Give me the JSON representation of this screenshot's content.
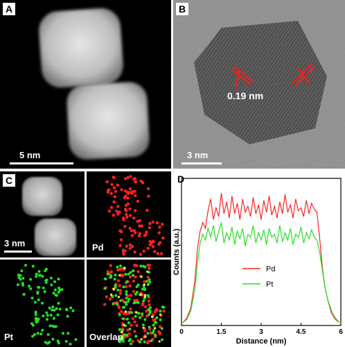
{
  "figure": {
    "panels": {
      "a": {
        "tag": "A",
        "scale_label": "5 nm"
      },
      "b": {
        "tag": "B",
        "scale_label": "3 nm",
        "annotation": "0.19 nm"
      },
      "c": {
        "tag": "C",
        "scale_label": "3 nm",
        "sub_labels": {
          "pd": "Pd",
          "pt": "Pt",
          "overlap": "Overlap"
        }
      },
      "d": {
        "tag": "D"
      }
    },
    "colors": {
      "pd": "#ff2020",
      "pt": "#22e022",
      "background": "#000000"
    }
  },
  "chart_data": {
    "type": "line",
    "title": "",
    "xlabel": "Distance (nm)",
    "ylabel": "Counts (a.u.)",
    "xlim": [
      0,
      6
    ],
    "xticks": [
      "0",
      "1.5",
      "3",
      "4.5",
      "6"
    ],
    "legend": {
      "placement": "bottom-center",
      "entries": [
        "Pd",
        "Pt"
      ]
    },
    "series": [
      {
        "name": "Pd",
        "color": "#ff2020",
        "x": [
          0.05,
          0.2,
          0.35,
          0.5,
          0.6,
          0.7,
          0.8,
          0.9,
          1.0,
          1.1,
          1.2,
          1.3,
          1.4,
          1.5,
          1.6,
          1.7,
          1.8,
          1.9,
          2.0,
          2.1,
          2.2,
          2.3,
          2.4,
          2.5,
          2.6,
          2.7,
          2.8,
          2.9,
          3.0,
          3.1,
          3.2,
          3.3,
          3.4,
          3.5,
          3.6,
          3.7,
          3.8,
          3.9,
          4.0,
          4.1,
          4.2,
          4.3,
          4.4,
          4.5,
          4.6,
          4.7,
          4.8,
          4.9,
          5.0,
          5.1,
          5.2,
          5.3,
          5.4,
          5.5,
          5.65,
          5.8,
          5.95
        ],
        "y": [
          0.02,
          0.05,
          0.12,
          0.3,
          0.52,
          0.64,
          0.7,
          0.66,
          0.78,
          0.86,
          0.72,
          0.8,
          0.74,
          0.9,
          0.76,
          0.84,
          0.73,
          0.88,
          0.76,
          0.83,
          0.72,
          0.86,
          0.77,
          0.81,
          0.74,
          0.87,
          0.76,
          0.82,
          0.72,
          0.85,
          0.77,
          0.88,
          0.75,
          0.81,
          0.73,
          0.84,
          0.76,
          0.89,
          0.77,
          0.82,
          0.73,
          0.86,
          0.78,
          0.8,
          0.74,
          0.85,
          0.76,
          0.83,
          0.79,
          0.77,
          0.6,
          0.4,
          0.26,
          0.18,
          0.08,
          0.04,
          0.02
        ]
      },
      {
        "name": "Pt",
        "color": "#22e022",
        "x": [
          0.05,
          0.2,
          0.35,
          0.5,
          0.6,
          0.7,
          0.8,
          0.9,
          1.0,
          1.1,
          1.2,
          1.3,
          1.4,
          1.5,
          1.6,
          1.7,
          1.8,
          1.9,
          2.0,
          2.1,
          2.2,
          2.3,
          2.4,
          2.5,
          2.6,
          2.7,
          2.8,
          2.9,
          3.0,
          3.1,
          3.2,
          3.3,
          3.4,
          3.5,
          3.6,
          3.7,
          3.8,
          3.9,
          4.0,
          4.1,
          4.2,
          4.3,
          4.4,
          4.5,
          4.6,
          4.7,
          4.8,
          4.9,
          5.0,
          5.1,
          5.2,
          5.3,
          5.4,
          5.5,
          5.65,
          5.8,
          5.95
        ],
        "y": [
          0.02,
          0.04,
          0.1,
          0.24,
          0.42,
          0.56,
          0.62,
          0.58,
          0.66,
          0.6,
          0.68,
          0.57,
          0.64,
          0.7,
          0.56,
          0.63,
          0.58,
          0.67,
          0.55,
          0.64,
          0.59,
          0.66,
          0.54,
          0.62,
          0.6,
          0.68,
          0.56,
          0.63,
          0.58,
          0.65,
          0.55,
          0.66,
          0.6,
          0.62,
          0.56,
          0.68,
          0.57,
          0.63,
          0.58,
          0.66,
          0.55,
          0.62,
          0.6,
          0.67,
          0.56,
          0.63,
          0.59,
          0.65,
          0.6,
          0.58,
          0.5,
          0.38,
          0.26,
          0.18,
          0.1,
          0.05,
          0.02
        ]
      }
    ]
  }
}
